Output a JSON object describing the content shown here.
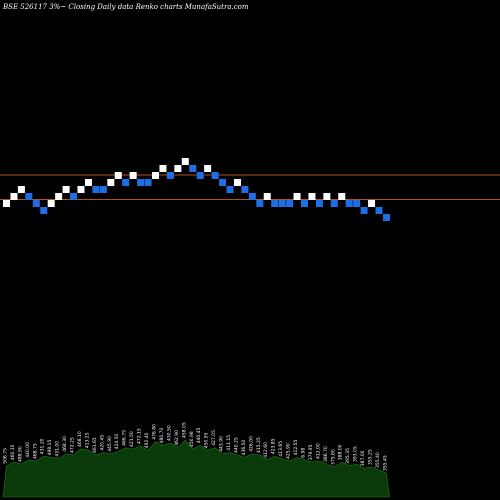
{
  "chart_data": {
    "type": "renko",
    "title": "BSE 526117 3%~   Closing Daily data  Renko  charts MunafaSutra.com",
    "colors": {
      "background": "#000000",
      "up_brick": "#ffffff",
      "down_brick": "#1e6fe6",
      "reference_line": "#b0541a",
      "volume_fill": "#0a3a0a",
      "volume_stroke": "#1f7a1f"
    },
    "reference_lines": [
      {
        "style": "solid"
      },
      {
        "style": "solid"
      }
    ],
    "bricks": [
      {
        "level": 0,
        "dir": "up"
      },
      {
        "level": 1,
        "dir": "up"
      },
      {
        "level": 2,
        "dir": "up"
      },
      {
        "level": 1,
        "dir": "down"
      },
      {
        "level": 0,
        "dir": "down"
      },
      {
        "level": -1,
        "dir": "down"
      },
      {
        "level": 0,
        "dir": "up"
      },
      {
        "level": 1,
        "dir": "up"
      },
      {
        "level": 2,
        "dir": "up"
      },
      {
        "level": 1,
        "dir": "down"
      },
      {
        "level": 2,
        "dir": "up"
      },
      {
        "level": 3,
        "dir": "up"
      },
      {
        "level": 2,
        "dir": "down"
      },
      {
        "level": 2,
        "dir": "down"
      },
      {
        "level": 3,
        "dir": "up"
      },
      {
        "level": 4,
        "dir": "up"
      },
      {
        "level": 3,
        "dir": "down"
      },
      {
        "level": 4,
        "dir": "up"
      },
      {
        "level": 3,
        "dir": "down"
      },
      {
        "level": 3,
        "dir": "down"
      },
      {
        "level": 4,
        "dir": "up"
      },
      {
        "level": 5,
        "dir": "up"
      },
      {
        "level": 4,
        "dir": "down"
      },
      {
        "level": 5,
        "dir": "up"
      },
      {
        "level": 6,
        "dir": "up"
      },
      {
        "level": 5,
        "dir": "down"
      },
      {
        "level": 4,
        "dir": "down"
      },
      {
        "level": 5,
        "dir": "up"
      },
      {
        "level": 4,
        "dir": "down"
      },
      {
        "level": 3,
        "dir": "down"
      },
      {
        "level": 2,
        "dir": "down"
      },
      {
        "level": 3,
        "dir": "up"
      },
      {
        "level": 2,
        "dir": "down"
      },
      {
        "level": 1,
        "dir": "down"
      },
      {
        "level": 0,
        "dir": "down"
      },
      {
        "level": 1,
        "dir": "up"
      },
      {
        "level": 0,
        "dir": "down"
      },
      {
        "level": 0,
        "dir": "down"
      },
      {
        "level": 0,
        "dir": "down"
      },
      {
        "level": 1,
        "dir": "up"
      },
      {
        "level": 0,
        "dir": "down"
      },
      {
        "level": 1,
        "dir": "up"
      },
      {
        "level": 0,
        "dir": "down"
      },
      {
        "level": 1,
        "dir": "up"
      },
      {
        "level": 0,
        "dir": "down"
      },
      {
        "level": 1,
        "dir": "up"
      },
      {
        "level": 0,
        "dir": "down"
      },
      {
        "level": 0,
        "dir": "down"
      },
      {
        "level": -1,
        "dir": "down"
      },
      {
        "level": 0,
        "dir": "up"
      },
      {
        "level": -1,
        "dir": "down"
      },
      {
        "level": -2,
        "dir": "down"
      }
    ],
    "volume": {
      "values": [
        0.52,
        0.58,
        0.55,
        0.62,
        0.6,
        0.68,
        0.66,
        0.64,
        0.72,
        0.7,
        0.8,
        0.78,
        0.7,
        0.74,
        0.72,
        0.76,
        0.82,
        0.8,
        0.85,
        0.78,
        0.92,
        0.86,
        0.9,
        0.82,
        0.95,
        0.8,
        0.86,
        0.78,
        0.82,
        0.72,
        0.74,
        0.7,
        0.66,
        0.72,
        0.7,
        0.62,
        0.68,
        0.64,
        0.6,
        0.66,
        0.62,
        0.58,
        0.6,
        0.55,
        0.5,
        0.58,
        0.52,
        0.55,
        0.48,
        0.5,
        0.45,
        0.4
      ],
      "labels": [
        "506.75",
        "460.10",
        "488.90",
        "440.00",
        "468.75",
        "431.20",
        "498.15",
        "431.00",
        "468.30",
        "472.25",
        "468.10",
        "413.25",
        "461.65",
        "420.45",
        "445.90",
        "424.50",
        "466.75",
        "421.50",
        "472.15",
        "492.40",
        "476.80",
        "480.70",
        "430.50",
        "462.90",
        "458.05",
        "450.98",
        "440.45",
        "450.95",
        "427.05",
        "443.90",
        "411.15",
        "440.25",
        "436.50",
        "426.00",
        "415.25",
        "412.60",
        "423.85",
        "413.65",
        "425.90",
        "412.55",
        "6.98",
        "379.95",
        "412.00",
        "386.70",
        "375.80",
        "388.00",
        "395.35",
        "393.05",
        "387.00",
        "355.25",
        "355.40",
        "355.45"
      ]
    }
  }
}
